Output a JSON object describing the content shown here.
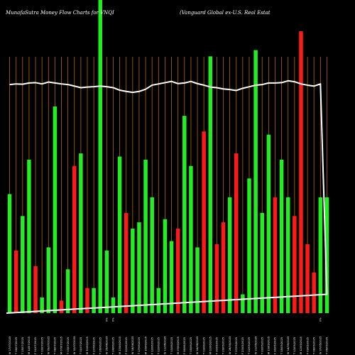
{
  "header": {
    "title_left": "MunafaSutra  Money Flow  Charts for VNQI",
    "title_right": "(Vanguard Global ex-U.S. Real Estat"
  },
  "colors": {
    "background": "#000000",
    "gridline": "#b36b00",
    "up": "#22ee22",
    "down": "#ff1a1a",
    "line": "#ffffff",
    "text": "#ffffff"
  },
  "chart_data": {
    "type": "bar",
    "ylim": [
      0,
      100
    ],
    "grid": "vertical",
    "categories": [
      "W 17/07/2025",
      "T 16/07/2025",
      "T 15/07/2025",
      "M 14/07/2025",
      "F 11/07/2025",
      "T 10/07/2025",
      "W 09/07/2025",
      "T 08/07/2025",
      "M 07/07/2025",
      "T 03/07/2025",
      "W 02/07/2025",
      "T 01/07/2025",
      "M 30/06/2025",
      "F 27/06/2025",
      "T 26/06/2025",
      "W 25/06/2025",
      "T 24/06/2025",
      "M 23/06/2025",
      "F 20/06/2025",
      "W 18/06/2025",
      "T 17/06/2025",
      "M 16/06/2025",
      "F 13/06/2025",
      "T 12/06/2025",
      "W 11/06/2025",
      "T 10/06/2025",
      "M 09/06/2025",
      "F 06/06/2025",
      "T 05/06/2025",
      "W 04/06/2025",
      "T 03/06/2025",
      "M 02/06/2025",
      "F 30/05/2025",
      "T 29/05/2025",
      "W 28/05/2025",
      "T 27/05/2025",
      "F 23/05/2025",
      "T 22/05/2025",
      "W 21/05/2025",
      "T 20/05/2025",
      "M 19/05/2025",
      "F 16/05/2025",
      "T 15/05/2025",
      "W 14/05/2025",
      "T 13/05/2025",
      "M 12/05/2025",
      "F 09/05/2025",
      "T 08/05/2025",
      "W 07/05/2025",
      "T 06/05/2025"
    ],
    "secondary_labels": [
      "",
      "",
      "",
      "",
      "",
      "",
      "",
      "",
      "",
      "",
      "",
      "",
      "",
      "",
      "",
      "0%",
      "0%",
      "",
      "",
      "",
      "",
      "",
      "",
      "",
      "",
      "",
      "",
      "",
      "",
      "",
      "",
      "",
      "",
      "",
      "",
      "",
      "",
      "",
      "",
      "",
      "",
      "",
      "",
      "",
      "",
      "",
      "",
      "",
      "0%",
      ""
    ],
    "bar_colors": [
      "green",
      "red",
      "green",
      "green",
      "red",
      "green",
      "green",
      "green",
      "red",
      "green",
      "red",
      "green",
      "red",
      "green",
      "green",
      "green",
      "green",
      "green",
      "red",
      "green",
      "green",
      "green",
      "green",
      "green",
      "green",
      "green",
      "red",
      "green",
      "green",
      "green",
      "red",
      "green",
      "red",
      "red",
      "green",
      "red",
      "green",
      "green",
      "green",
      "green",
      "green",
      "red",
      "green",
      "green",
      "red",
      "red",
      "red",
      "red",
      "green",
      "green"
    ],
    "values": [
      38,
      20,
      31,
      49,
      15,
      5,
      21,
      66,
      4,
      14,
      47,
      51,
      8,
      8,
      100,
      20,
      5,
      50,
      32,
      27,
      29,
      49,
      37,
      8,
      30,
      23,
      27,
      63,
      47,
      21,
      58,
      82,
      22,
      29,
      37,
      51,
      6,
      43,
      84,
      32,
      57,
      37,
      49,
      37,
      31,
      90,
      22,
      13,
      37,
      37
    ],
    "line_values": [
      73,
      73.2,
      73.1,
      73.5,
      73.6,
      73.2,
      73.8,
      73.5,
      73.2,
      73,
      72.5,
      72,
      72.2,
      72.3,
      72.5,
      72.3,
      72,
      71.2,
      70.8,
      70.5,
      70.8,
      71.5,
      72.8,
      73.2,
      73.6,
      74,
      73.3,
      73.5,
      74,
      73.3,
      72.8,
      72.2,
      72,
      71.6,
      71.4,
      71.1,
      71.8,
      72.3,
      72.8,
      73,
      73.5,
      73.5,
      73.6,
      74.2,
      73.9,
      73.2,
      72.8,
      72.5,
      73.2,
      6
    ]
  }
}
